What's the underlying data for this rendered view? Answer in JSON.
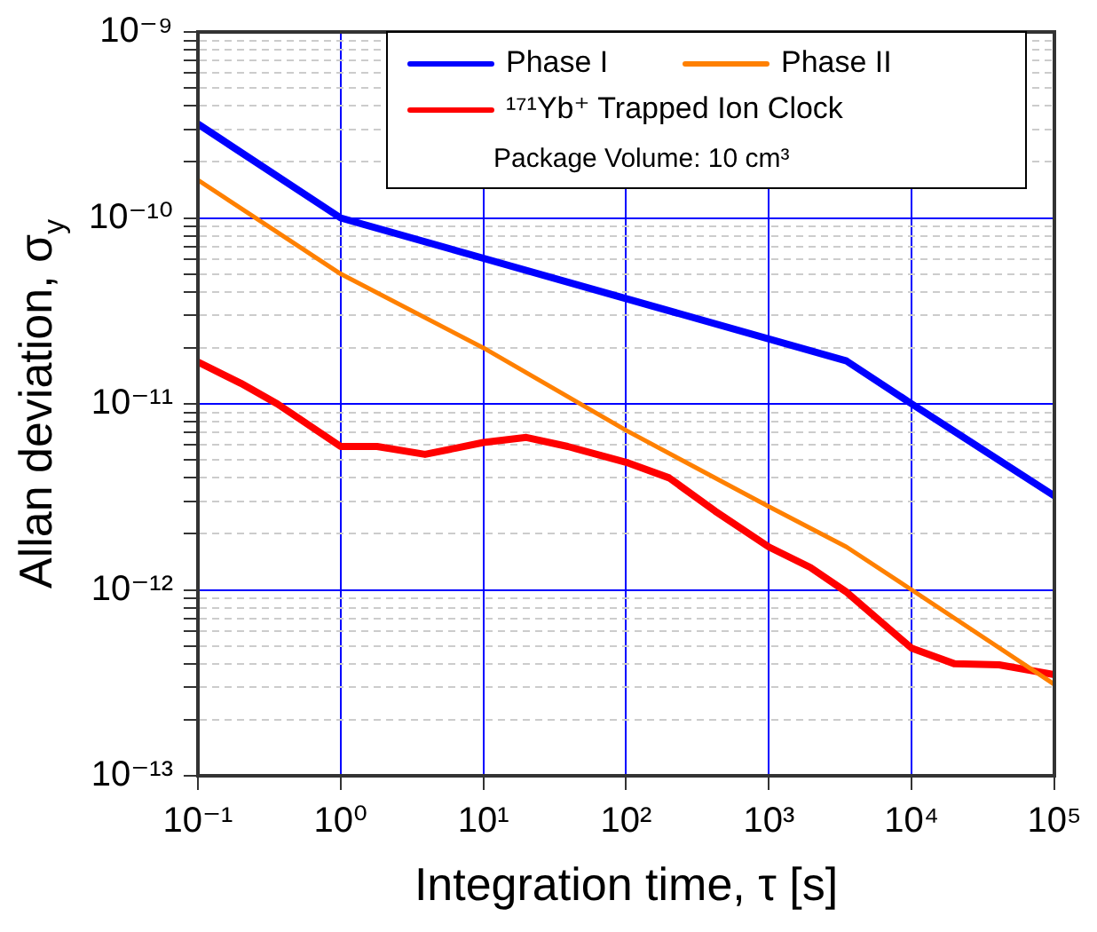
{
  "chart_data": {
    "type": "line",
    "xlabel": "Integration time, τ [s]",
    "ylabel": "Allan deviation, σ$_{y}$",
    "log": "xy",
    "grid": true,
    "legend": "top right",
    "marker": "none",
    "line_style": "solid",
    "xlim": [
      0.1,
      100000
    ],
    "ylim": [
      1e-13,
      1e-09
    ],
    "xticks": [
      {
        "value": 0.1,
        "label": "10⁻¹"
      },
      {
        "value": 1,
        "label": "10⁰"
      },
      {
        "value": 10,
        "label": "10¹"
      },
      {
        "value": 100,
        "label": "10²"
      },
      {
        "value": 1000,
        "label": "10³"
      },
      {
        "value": 10000,
        "label": "10⁴"
      },
      {
        "value": 100000,
        "label": "10⁵"
      }
    ],
    "yticks": [
      {
        "value": 1e-13,
        "label": "10⁻¹³"
      },
      {
        "value": 2e-13,
        "label": null
      },
      {
        "value": 3e-13,
        "label": null
      },
      {
        "value": 4e-13,
        "label": null
      },
      {
        "value": 5e-13,
        "label": null
      },
      {
        "value": 6e-13,
        "label": null
      },
      {
        "value": 7e-13,
        "label": null
      },
      {
        "value": 8e-13,
        "label": null
      },
      {
        "value": 9e-13,
        "label": null
      },
      {
        "value": 1e-12,
        "label": "10⁻¹²"
      },
      {
        "value": 2e-12,
        "label": null
      },
      {
        "value": 3e-12,
        "label": null
      },
      {
        "value": 4e-12,
        "label": null
      },
      {
        "value": 5e-12,
        "label": null
      },
      {
        "value": 6e-12,
        "label": null
      },
      {
        "value": 7e-12,
        "label": null
      },
      {
        "value": 8e-12,
        "label": null
      },
      {
        "value": 9e-12,
        "label": null
      },
      {
        "value": 1e-11,
        "label": "10⁻¹¹"
      },
      {
        "value": 2e-11,
        "label": null
      },
      {
        "value": 3e-11,
        "label": null
      },
      {
        "value": 4e-11,
        "label": null
      },
      {
        "value": 5e-11,
        "label": null
      },
      {
        "value": 6e-11,
        "label": null
      },
      {
        "value": 7e-11,
        "label": null
      },
      {
        "value": 8e-11,
        "label": null
      },
      {
        "value": 9e-11,
        "label": null
      },
      {
        "value": 1e-10,
        "label": "10⁻¹⁰"
      },
      {
        "value": 2e-10,
        "label": null
      },
      {
        "value": 3e-10,
        "label": null
      },
      {
        "value": 4e-10,
        "label": null
      },
      {
        "value": 5e-10,
        "label": null
      },
      {
        "value": 6e-10,
        "label": null
      },
      {
        "value": 7e-10,
        "label": null
      },
      {
        "value": 8e-10,
        "label": null
      },
      {
        "value": 9e-10,
        "label": null
      },
      {
        "value": 1e-09,
        "label": "10⁻⁹"
      }
    ],
    "annotations": [
      "Package Volume: 10 cm³"
    ],
    "series": [
      {
        "name": "Phase I",
        "color": "#0000ff",
        "x": [
          0.1,
          1,
          3500,
          10000,
          100000
        ],
        "values": [
          3.2e-10,
          1e-10,
          1.7e-11,
          1e-11,
          3.2e-12
        ]
      },
      {
        "name": "Phase II",
        "color": "#ff8000",
        "x": [
          0.1,
          1,
          10,
          100,
          1000,
          3500,
          10000,
          100000
        ],
        "values": [
          1.6e-10,
          5e-11,
          2e-11,
          7.2e-12,
          2.8e-12,
          1.7e-12,
          1e-12,
          3.1e-13
        ]
      },
      {
        "name": "¹⁷¹Yb⁺ Trapped Ion Clock",
        "color": "#ff0000",
        "x": [
          0.1,
          0.2,
          0.36,
          1,
          1.8,
          3.9,
          10,
          20,
          39,
          100,
          200,
          420,
          1000,
          1950,
          3450,
          10000,
          20000,
          41000,
          100000
        ],
        "values": [
          1.68e-11,
          1.29e-11,
          1e-11,
          5.9e-12,
          5.9e-12,
          5.35e-12,
          6.2e-12,
          6.6e-12,
          5.9e-12,
          4.85e-12,
          4e-12,
          2.65e-12,
          1.7e-12,
          1.32e-12,
          9.8e-13,
          4.85e-13,
          4e-13,
          3.95e-13,
          3.5e-13
        ]
      }
    ]
  }
}
